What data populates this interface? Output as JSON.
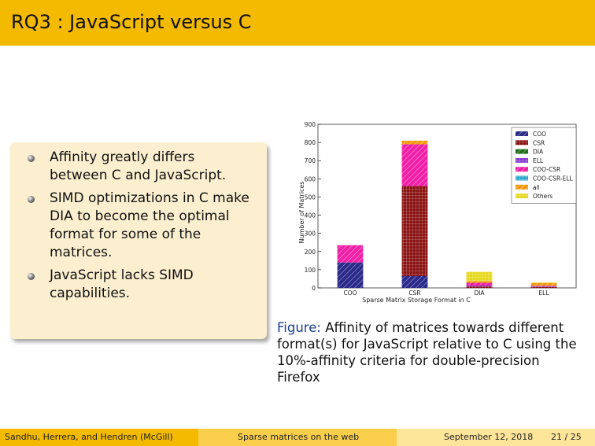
{
  "slide": {
    "title": "RQ3 : JavaScript versus C",
    "bullets": [
      "Affinity greatly differs between C and JavaScript.",
      "SIMD optimizations in C make DIA to become the optimal format for some of the matrices.",
      "JavaScript lacks SIMD capabilities."
    ],
    "caption_lead": "Figure:",
    "caption_text": "Affinity of matrices towards different format(s) for JavaScript relative to C using the 10%-affinity criteria for double-precision Firefox"
  },
  "footer": {
    "authors": "Sandhu, Herrera, and Hendren  (McGill)",
    "talk_title": "Sparse matrices on the web",
    "date": "September 12, 2018",
    "page": "21 / 25"
  },
  "colors": {
    "title_bar": "#f4ba00",
    "block_bg": "#fcefcf",
    "caption_lead": "#1a3f8f"
  },
  "chart_data": {
    "type": "bar",
    "stacked": true,
    "xlabel": "Sparse Matrix Storage Format in C",
    "ylabel": "Number of Matrices",
    "ylim": [
      0,
      900
    ],
    "yticks": [
      0,
      100,
      200,
      300,
      400,
      500,
      600,
      700,
      800,
      900
    ],
    "categories": [
      "COO",
      "CSR",
      "DIA",
      "ELL"
    ],
    "series": [
      {
        "name": "COO",
        "color": "#2a2a8a",
        "values": [
          140,
          65,
          0,
          0
        ]
      },
      {
        "name": "CSR",
        "color": "#8a1212",
        "values": [
          0,
          495,
          8,
          5
        ]
      },
      {
        "name": "DIA",
        "color": "#1e6e1e",
        "values": [
          0,
          0,
          0,
          0
        ]
      },
      {
        "name": "ELL",
        "color": "#8a3ad0",
        "values": [
          0,
          0,
          5,
          4
        ]
      },
      {
        "name": "COO-CSR",
        "color": "#f020a8",
        "values": [
          95,
          230,
          15,
          3
        ]
      },
      {
        "name": "COO-CSR-ELL",
        "color": "#2fa8d0",
        "values": [
          0,
          0,
          0,
          0
        ]
      },
      {
        "name": "all",
        "color": "#f09a10",
        "values": [
          0,
          20,
          10,
          15
        ]
      },
      {
        "name": "Others",
        "color": "#e6d81e",
        "values": [
          0,
          0,
          50,
          3
        ]
      }
    ],
    "legend_position": "top-right",
    "grid": false
  }
}
